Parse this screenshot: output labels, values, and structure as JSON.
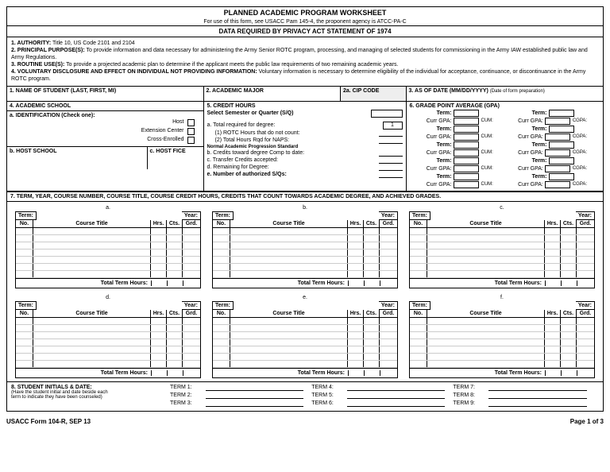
{
  "header": {
    "title": "PLANNED ACADEMIC PROGRAM WORKSHEET",
    "subtitle": "For use of this form, see USACC Pam 145-4, the proponent agency is ATCC-PA-C",
    "data_stmt": "DATA REQUIRED BY PRIVACY ACT STATEMENT OF 1974"
  },
  "privacy": {
    "l1b": "1. AUTHORITY:",
    "l1": " Title 10, US Code 2101 and 2104",
    "l2b": "2. PRINCIPAL PURPOSE(S):",
    "l2": " To provide information and data necessary for administering the Army Senior ROTC program, processing, and managing of selected students for commissioning in the Army IAW established public law and Army Regulations.",
    "l3b": "3. ROUTINE USE(S):",
    "l3": " To provide a projected academic plan to determine if the applicant meets the public law requirements of two remaining academic years.",
    "l4b": "4. VOLUNTARY DISCLOSURE AND EFFECT ON INDIVIDUAL NOT PROVIDING INFORMATION:",
    "l4": " Voluntary information is necessary to determine eligibility of the individual for acceptance, continuance, or discontinuance in the Army ROTC program."
  },
  "s1": {
    "label": "1. NAME OF STUDENT (LAST, FIRST, MI)"
  },
  "s2": {
    "label": "2. ACADEMIC MAJOR",
    "cip": "2a. CIP CODE"
  },
  "s3": {
    "label": "3. AS OF DATE (MM/DD/YYYY)",
    "note": "(Date of form preparation)"
  },
  "s4": {
    "label": "4. ACADEMIC SCHOOL"
  },
  "sa": {
    "label": "a. IDENTIFICATION (Check one):",
    "host": "Host",
    "ext": "Extension Center",
    "cross": "Cross-Enrolled"
  },
  "sb": {
    "label": "b. HOST SCHOOL",
    "fice": "c. HOST FICE"
  },
  "s5": {
    "label": "5. CREDIT HOURS",
    "select": "Select Semester or Quarter (S/Q)",
    "a": "a. Total required for degree:",
    "a1": "(1) ROTC Hours that do not count:",
    "a2": "(2) Total Hours Rqd for NAPS:",
    "naps": "Normal Academic Progression Standard",
    "b": "b. Credits toward degree Comp to date:",
    "c": "c. Transfer Credits accepted:",
    "d": "d. Remaining for Degree:",
    "e": "e. Number of authorized S/Qs:"
  },
  "s6": {
    "label": "6. GRADE POINT AVERAGE (GPA)",
    "term": "Term:",
    "curr": "Curr GPA:",
    "cum": "CUM:",
    "cgpa": "CGPA:"
  },
  "s7": {
    "label": "7.    TERM, YEAR, COURSE NUMBER, COURSE TITLE, COURSE CREDIT HOURS, CREDITS THAT COUNT TOWARDS ACADEMIC DEGREE, AND ACHIEVED GRADES.",
    "abc": [
      "a.",
      "b.",
      "c.",
      "d.",
      "e.",
      "f."
    ],
    "term": "Term:",
    "year": "Year:",
    "no": "No.",
    "ct": "Course Title",
    "hrs": "Hrs.",
    "cts": "Cts.",
    "grd": "Grd.",
    "tot": "Total Term Hours:"
  },
  "s8": {
    "label": "8. STUDENT INITIALS & DATE:",
    "note1": "(Have the student initial and date beside each",
    "note2": "term to indicate they have been counseled)",
    "terms": [
      "TERM 1:",
      "TERM 2:",
      "TERM 3:",
      "TERM 4:",
      "TERM 5:",
      "TERM 6:",
      "TERM 7:",
      "TERM 8:",
      "TERM 9:"
    ]
  },
  "footer": {
    "form": "USACC Form 104-R, SEP 13",
    "page": "Page 1 of 3"
  }
}
